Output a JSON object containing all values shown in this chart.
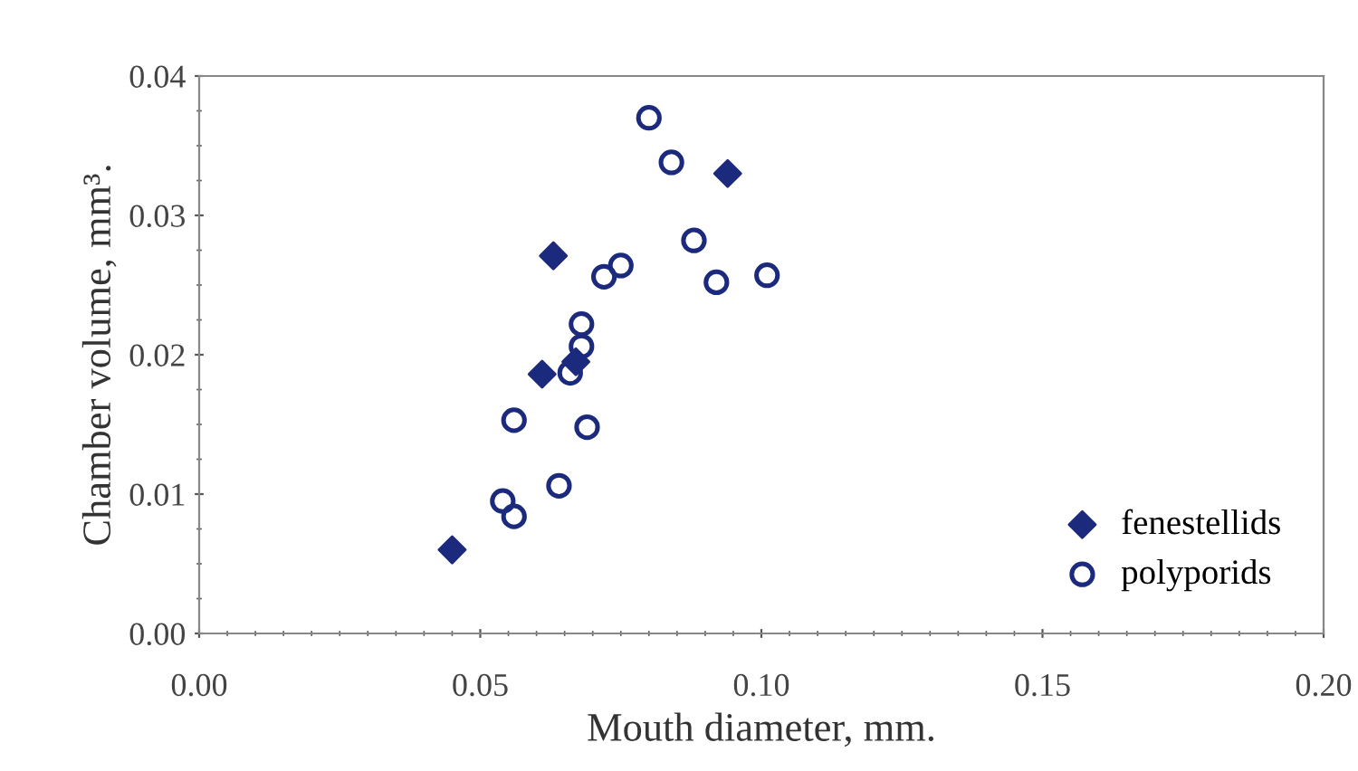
{
  "chart_data": {
    "type": "scatter",
    "xlabel": "Mouth diameter, mm.",
    "ylabel": "Chamber volume, mm³.",
    "xlim": [
      0,
      0.2
    ],
    "ylim": [
      0,
      0.04
    ],
    "xticks": [
      {
        "value": 0,
        "label": "0.00"
      },
      {
        "value": 0.05,
        "label": "0.05"
      },
      {
        "value": 0.1,
        "label": "0.10"
      },
      {
        "value": 0.15,
        "label": "0.15"
      },
      {
        "value": 0.2,
        "label": "0.20"
      }
    ],
    "yticks": [
      {
        "value": 0,
        "label": "0.00"
      },
      {
        "value": 0.01,
        "label": "0.01"
      },
      {
        "value": 0.02,
        "label": "0.02"
      },
      {
        "value": 0.03,
        "label": "0.03"
      },
      {
        "value": 0.04,
        "label": "0.04"
      }
    ],
    "grid": false,
    "legend": "bottom right",
    "series": [
      {
        "name": "fenestellids",
        "color": "#1c2a7e",
        "marker": "diamond",
        "x": [
          0.045,
          0.061,
          0.067,
          0.063,
          0.094
        ],
        "values": [
          0.006,
          0.0186,
          0.0195,
          0.0271,
          0.033
        ]
      },
      {
        "name": "polyporids",
        "color": "#1c2a7e",
        "marker": "circle",
        "x": [
          0.08,
          0.084,
          0.088,
          0.092,
          0.101,
          0.075,
          0.072,
          0.068,
          0.068,
          0.066,
          0.056,
          0.069,
          0.064,
          0.054,
          0.056
        ],
        "values": [
          0.037,
          0.0338,
          0.0282,
          0.0252,
          0.0257,
          0.0264,
          0.0256,
          0.0222,
          0.0206,
          0.0187,
          0.0153,
          0.0148,
          0.0106,
          0.0095,
          0.0084
        ]
      }
    ]
  }
}
